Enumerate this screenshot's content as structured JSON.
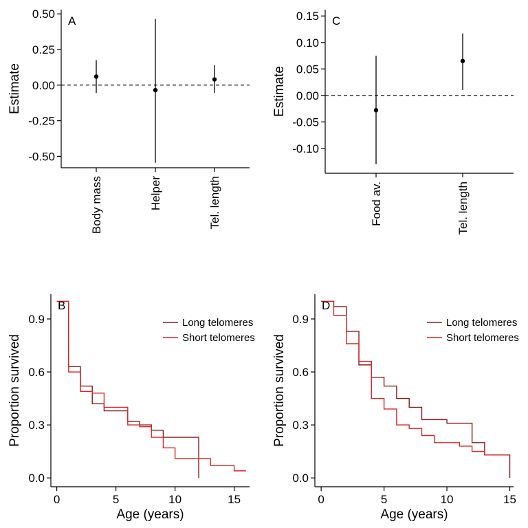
{
  "chart_data": [
    {
      "type": "scatter",
      "panel_label": "A",
      "ylabel": "Estimate",
      "categories": [
        "Body mass",
        "Helper",
        "Tel. length"
      ],
      "estimates": [
        0.06,
        -0.035,
        0.04
      ],
      "ci_lower": [
        -0.055,
        -0.545,
        -0.055
      ],
      "ci_upper": [
        0.175,
        0.465,
        0.14
      ],
      "ylim": [
        -0.58,
        0.53
      ],
      "yticks": [
        "0.50",
        "0.25",
        "0.00",
        "-0.25",
        "-0.50"
      ],
      "reference_line": 0
    },
    {
      "type": "scatter",
      "panel_label": "C",
      "ylabel": "Estimate",
      "categories": [
        "Food av.",
        "Tel. length"
      ],
      "estimates": [
        -0.028,
        0.065
      ],
      "ci_lower": [
        -0.13,
        0.01
      ],
      "ci_upper": [
        0.075,
        0.117
      ],
      "ylim": [
        -0.147,
        0.162
      ],
      "yticks": [
        "0.15",
        "0.10",
        "0.05",
        "0.00",
        "-0.05",
        "-0.10"
      ],
      "reference_line": 0
    },
    {
      "type": "line",
      "panel_label": "B",
      "xlabel": "Age (years)",
      "ylabel": "Proportion survived",
      "xlim": [
        -0.5,
        16.3
      ],
      "ylim": [
        -0.05,
        1.04
      ],
      "xticks": [
        "0",
        "5",
        "10",
        "15"
      ],
      "yticks": [
        "0.9",
        "0.6",
        "0.3",
        "0.0"
      ],
      "legend_position": "top-right",
      "series": [
        {
          "name": "Long telomeres",
          "color": "#8b1a1a",
          "x": [
            0,
            1,
            2,
            3,
            4,
            6,
            7,
            8,
            9,
            10,
            11,
            12,
            12
          ],
          "y": [
            1.0,
            0.63,
            0.52,
            0.42,
            0.38,
            0.32,
            0.3,
            0.27,
            0.23,
            0.23,
            0.23,
            0.11,
            0.0
          ]
        },
        {
          "name": "Short telomeres",
          "color": "#d62728",
          "x": [
            0,
            1,
            2,
            3,
            4,
            5,
            6,
            7,
            8,
            9,
            10,
            11,
            13,
            15,
            16
          ],
          "y": [
            1.0,
            0.6,
            0.49,
            0.48,
            0.4,
            0.4,
            0.3,
            0.29,
            0.23,
            0.17,
            0.11,
            0.11,
            0.07,
            0.04,
            0.04
          ]
        }
      ]
    },
    {
      "type": "line",
      "panel_label": "D",
      "xlabel": "Age (years)",
      "ylabel": "Proportion survived",
      "xlim": [
        -0.5,
        15.3
      ],
      "ylim": [
        -0.05,
        1.04
      ],
      "xticks": [
        "0",
        "5",
        "10",
        "15"
      ],
      "yticks": [
        "0.9",
        "0.6",
        "0.3",
        "0.0"
      ],
      "legend_position": "top-right",
      "series": [
        {
          "name": "Long telomeres",
          "color": "#8b1a1a",
          "x": [
            0,
            1,
            2,
            3,
            4,
            5,
            6,
            7,
            8,
            10,
            12,
            13,
            15,
            15
          ],
          "y": [
            1.0,
            0.97,
            0.83,
            0.64,
            0.57,
            0.52,
            0.45,
            0.4,
            0.33,
            0.31,
            0.2,
            0.13,
            0.13,
            0.0
          ]
        },
        {
          "name": "Short telomeres",
          "color": "#d62728",
          "x": [
            0,
            1,
            2,
            3,
            4,
            5,
            6,
            7,
            8,
            9,
            11,
            12,
            13,
            15
          ],
          "y": [
            1.0,
            0.92,
            0.76,
            0.66,
            0.45,
            0.39,
            0.3,
            0.28,
            0.24,
            0.2,
            0.18,
            0.15,
            0.13,
            0.13
          ]
        }
      ]
    }
  ]
}
